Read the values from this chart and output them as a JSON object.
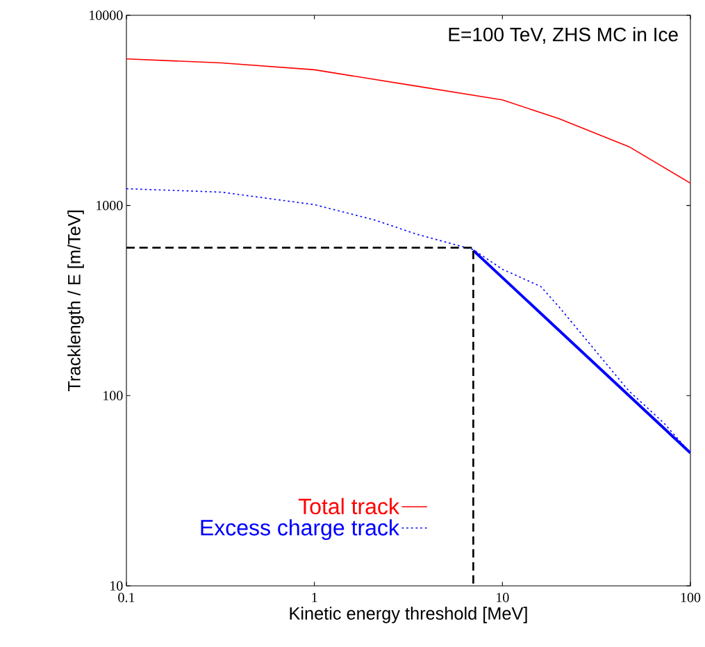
{
  "chart_data": {
    "type": "line",
    "xlabel": "Kinetic energy threshold [MeV]",
    "ylabel": "Tracklength / E  [m/TeV]",
    "annotations": [
      "E=100 TeV, ZHS MC in Ice"
    ],
    "log": "xy",
    "xlim": [
      0.1,
      100
    ],
    "ylim": [
      10,
      10000
    ],
    "xticks": [
      0.1,
      1,
      10,
      100
    ],
    "yticks": [
      10,
      100,
      1000,
      10000
    ],
    "legend": "bottom",
    "grid": false,
    "series": [
      {
        "name": "Total track",
        "color": "#ff0000",
        "line_style": "solid",
        "x": [
          0.1,
          0.32,
          1,
          3.3,
          10,
          20,
          47,
          100
        ],
        "values": [
          5900,
          5620,
          5170,
          4280,
          3590,
          2860,
          2040,
          1310
        ]
      },
      {
        "name": "Excess charge track",
        "color": "#0000ff",
        "line_style": "dotted",
        "x": [
          0.1,
          0.32,
          1,
          2.1,
          3.5,
          7,
          10,
          16,
          20,
          30.7,
          47,
          72,
          100
        ],
        "values": [
          1225,
          1175,
          1010,
          838,
          706,
          586,
          462,
          375,
          293,
          176,
          106,
          72,
          50
        ]
      },
      {
        "color": "#0000ff",
        "line_style": "solid",
        "x": [
          7,
          100
        ],
        "values": [
          580,
          50
        ]
      },
      {
        "color": "#000000",
        "line_style": "dashed",
        "x": [
          0.1,
          7,
          7
        ],
        "values": [
          600,
          600,
          10
        ]
      }
    ]
  }
}
